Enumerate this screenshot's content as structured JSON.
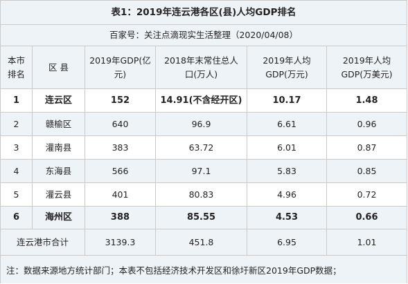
{
  "title": "表1：2019年连云港各区(县)人均GDP排名",
  "subtitle": "百家号：关注点滴现实生活整理（2020/04/08）",
  "headers": [
    "本市排名",
    "区 县",
    "2019年GDP(亿元)",
    "2018年末常住总人口(万人)",
    "2019年人均GDP(万元)",
    "2019年人均GDP(万美元)"
  ],
  "rows": [
    {
      "rank": "1",
      "district": "连云区",
      "gdp": "152",
      "population": "14.91(不含经开区)",
      "per_capita_cny": "10.17",
      "per_capita_usd": "1.48",
      "bold": true
    },
    {
      "rank": "2",
      "district": "赣榆区",
      "gdp": "640",
      "population": "96.9",
      "per_capita_cny": "6.61",
      "per_capita_usd": "0.96",
      "bold": false
    },
    {
      "rank": "3",
      "district": "灌南县",
      "gdp": "383",
      "population": "63.72",
      "per_capita_cny": "6.01",
      "per_capita_usd": "0.87",
      "bold": false
    },
    {
      "rank": "4",
      "district": "东海县",
      "gdp": "566",
      "population": "97.1",
      "per_capita_cny": "5.83",
      "per_capita_usd": "0.85",
      "bold": false
    },
    {
      "rank": "5",
      "district": "灌云县",
      "gdp": "401",
      "population": "80.83",
      "per_capita_cny": "4.96",
      "per_capita_usd": "0.72",
      "bold": false
    },
    {
      "rank": "6",
      "district": "海州区",
      "gdp": "388",
      "population": "85.55",
      "per_capita_cny": "4.53",
      "per_capita_usd": "0.66",
      "bold": true
    }
  ],
  "total": {
    "label": "连云港市合计",
    "gdp": "3139.3",
    "population": "451.8",
    "per_capita_cny": "6.95",
    "per_capita_usd": "1.01"
  },
  "note": "注：数据来源地方统计部门；本表不包括经济技术开发区和徐圩新区2019年GDP数据；"
}
